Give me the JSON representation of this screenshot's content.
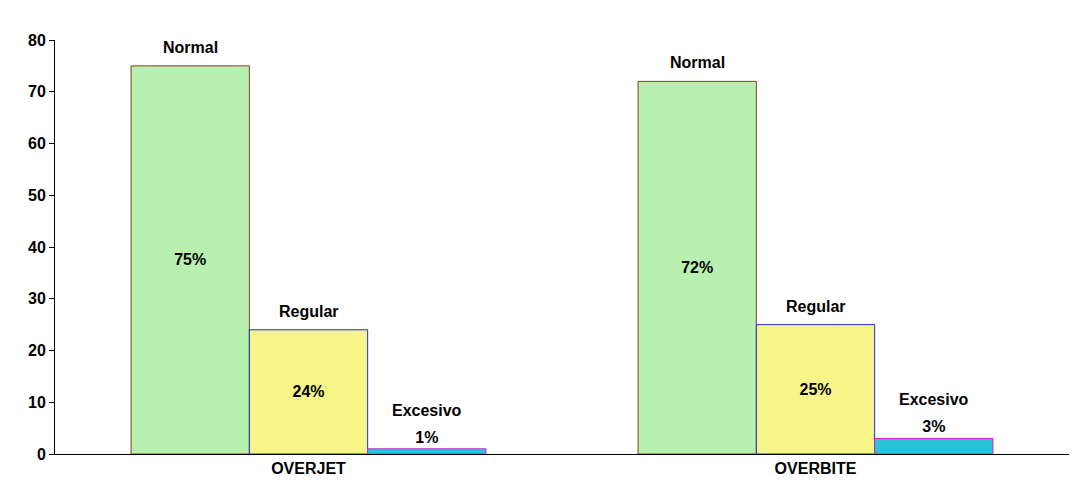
{
  "chart_data": {
    "type": "bar",
    "categories": [
      "OVERJET",
      "OVERBITE"
    ],
    "series": [
      {
        "name": "Normal",
        "color": "#b8f0b0",
        "values": [
          75,
          72
        ],
        "value_labels": [
          "75%",
          "72%"
        ]
      },
      {
        "name": "Regular",
        "color": "#f7f58a",
        "values": [
          24,
          25
        ],
        "value_labels": [
          "24%",
          "25%"
        ]
      },
      {
        "name": "Excesivo",
        "color": "#29c4d6",
        "values": [
          1,
          3
        ],
        "value_labels": [
          "1%",
          "3%"
        ]
      }
    ],
    "ylim": [
      0,
      80
    ],
    "yticks": [
      0,
      10,
      20,
      30,
      40,
      50,
      60,
      70,
      80
    ],
    "grid": false,
    "data_labels": true
  }
}
